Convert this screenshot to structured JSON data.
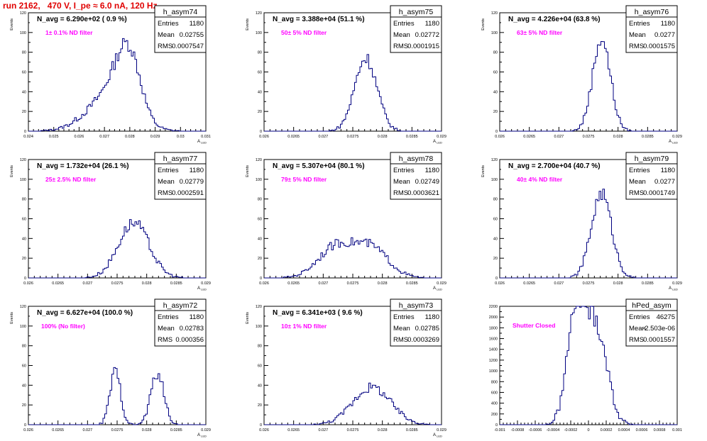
{
  "header": {
    "run_title": "run 2162,   470 V, I_pe ≈ 6.0 nA, 120 Hz"
  },
  "colors": {
    "histogram": "#000080",
    "filter_text": "#ff00ff",
    "title": "#e00000",
    "frame": "#000000"
  },
  "chart_data": [
    {
      "type": "histogram",
      "name": "h_asym74",
      "nlabel": "N_avg = 6.290e+02 ( 0.9 %)",
      "filter": "1± 0.1% ND filter",
      "stats": {
        "Entries": "1180",
        "Mean": "0.02755",
        "RMS": "0.0007547"
      },
      "ylabel": "Events",
      "xlabel": "A_LED",
      "xlim": [
        0.024,
        0.031
      ],
      "ylim": [
        0,
        120
      ],
      "xticks": [
        "0.024",
        "0.025",
        "0.026",
        "0.027",
        "0.028",
        "0.029",
        "0.03",
        "0.031"
      ],
      "yticks": [
        "0",
        "20",
        "40",
        "60",
        "80",
        "100",
        "120"
      ],
      "shape": {
        "peaks": [
          [
            0.0272,
            34,
            0.0009
          ],
          [
            0.0278,
            42,
            0.0005
          ],
          [
            0.0281,
            26,
            0.0004
          ]
        ]
      }
    },
    {
      "type": "histogram",
      "name": "h_asym75",
      "nlabel": "N_avg = 3.388e+04 (51.1 %)",
      "filter": "50± 5% ND filter",
      "stats": {
        "Entries": "1180",
        "Mean": "0.02772",
        "RMS": "0.0001915"
      },
      "ylabel": "Events",
      "xlabel": "A_LED",
      "xlim": [
        0.026,
        0.029
      ],
      "ylim": [
        0,
        120
      ],
      "xticks": [
        "0.026",
        "0.0265",
        "0.027",
        "0.0275",
        "0.028",
        "0.0285",
        "0.029"
      ],
      "yticks": [
        "0",
        "20",
        "40",
        "60",
        "80",
        "100",
        "120"
      ],
      "shape": {
        "peaks": [
          [
            0.02772,
            74,
            0.00019
          ]
        ]
      }
    },
    {
      "type": "histogram",
      "name": "h_asym76",
      "nlabel": "N_avg = 4.226e+04 (63.8 %)",
      "filter": "63± 5% ND filter",
      "stats": {
        "Entries": "1180",
        "Mean": "0.0277",
        "RMS": "0.0001575"
      },
      "ylabel": "Events",
      "xlabel": "A_LED",
      "xlim": [
        0.026,
        0.029
      ],
      "ylim": [
        0,
        120
      ],
      "xticks": [
        "0.026",
        "0.0265",
        "0.027",
        "0.0275",
        "0.028",
        "0.0285",
        "0.029"
      ],
      "yticks": [
        "0",
        "20",
        "40",
        "60",
        "80",
        "100",
        "120"
      ],
      "shape": {
        "peaks": [
          [
            0.02772,
            94,
            0.00015
          ]
        ]
      }
    },
    {
      "type": "histogram",
      "name": "h_asym77",
      "nlabel": "N_avg = 1.732e+04 (26.1 %)",
      "filter": "25± 2.5% ND filter",
      "stats": {
        "Entries": "1180",
        "Mean": "0.02779",
        "RMS": "0.0002591"
      },
      "ylabel": "Events",
      "xlabel": "A_LED",
      "xlim": [
        0.026,
        0.029
      ],
      "ylim": [
        0,
        120
      ],
      "xticks": [
        "0.026",
        "0.0265",
        "0.027",
        "0.0275",
        "0.028",
        "0.0285",
        "0.029"
      ],
      "yticks": [
        "0",
        "20",
        "40",
        "60",
        "80",
        "100",
        "120"
      ],
      "shape": {
        "peaks": [
          [
            0.02778,
            56,
            0.00026
          ]
        ]
      }
    },
    {
      "type": "histogram",
      "name": "h_asym78",
      "nlabel": "N_avg = 5.307e+04 (80.1 %)",
      "filter": "79± 5% ND filter",
      "stats": {
        "Entries": "1180",
        "Mean": "0.02749",
        "RMS": "0.0003621"
      },
      "ylabel": "Events",
      "xlabel": "A_LED",
      "xlim": [
        0.026,
        0.029
      ],
      "ylim": [
        0,
        120
      ],
      "xticks": [
        "0.026",
        "0.0265",
        "0.027",
        "0.0275",
        "0.028",
        "0.0285",
        "0.029"
      ],
      "yticks": [
        "0",
        "20",
        "40",
        "60",
        "80",
        "100",
        "120"
      ],
      "shape": {
        "peaks": [
          [
            0.0272,
            30,
            0.0003
          ],
          [
            0.0278,
            30,
            0.0003
          ]
        ]
      }
    },
    {
      "type": "histogram",
      "name": "h_asym79",
      "nlabel": "N_avg = 2.700e+04 (40.7 %)",
      "filter": "40± 4% ND filter",
      "stats": {
        "Entries": "1180",
        "Mean": "0.0277",
        "RMS": "0.0001749"
      },
      "ylabel": "Events",
      "xlabel": "A_LED",
      "xlim": [
        0.026,
        0.029
      ],
      "ylim": [
        0,
        120
      ],
      "xticks": [
        "0.026",
        "0.0265",
        "0.027",
        "0.0275",
        "0.028",
        "0.0285",
        "0.029"
      ],
      "yticks": [
        "0",
        "20",
        "40",
        "60",
        "80",
        "100",
        "120"
      ],
      "shape": {
        "peaks": [
          [
            0.02772,
            86,
            0.00017
          ]
        ]
      }
    },
    {
      "type": "histogram",
      "name": "h_asym72",
      "nlabel": "N_avg = 6.627e+04 (100.0 %)",
      "filter": "100% (No filter)",
      "stats": {
        "Entries": "1180",
        "Mean": "0.02783",
        "RMS": "0.000356"
      },
      "ylabel": "Events",
      "xlabel": "A_LED",
      "xlim": [
        0.026,
        0.029
      ],
      "ylim": [
        0,
        120
      ],
      "xticks": [
        "0.026",
        "0.0265",
        "0.027",
        "0.0275",
        "0.028",
        "0.0285",
        "0.029"
      ],
      "yticks": [
        "0",
        "20",
        "40",
        "60",
        "80",
        "100",
        "120"
      ],
      "shape": {
        "peaks": [
          [
            0.02747,
            54,
            9e-05
          ],
          [
            0.02818,
            52,
            0.00011
          ]
        ]
      }
    },
    {
      "type": "histogram",
      "name": "h_asym73",
      "nlabel": "N_avg = 6.341e+03 ( 9.6 %)",
      "filter": "10± 1% ND filter",
      "stats": {
        "Entries": "1180",
        "Mean": "0.02785",
        "RMS": "0.0003269"
      },
      "ylabel": "Events",
      "xlabel": "A_LED",
      "xlim": [
        0.026,
        0.029
      ],
      "ylim": [
        0,
        120
      ],
      "xticks": [
        "0.026",
        "0.0265",
        "0.027",
        "0.0275",
        "0.028",
        "0.0285",
        "0.029"
      ],
      "yticks": [
        "0",
        "20",
        "40",
        "60",
        "80",
        "100",
        "120"
      ],
      "shape": {
        "peaks": [
          [
            0.02782,
            38,
            0.00032
          ]
        ]
      }
    },
    {
      "type": "histogram",
      "name": "hPed_asym",
      "nlabel": "",
      "filter": "Shutter Closed",
      "stats": {
        "Entries": "46275",
        "Mean": "-2.503e-06",
        "RMS": "0.0001557"
      },
      "ylabel": "",
      "xlabel": "",
      "xlim": [
        -0.001,
        0.001
      ],
      "ylim": [
        0,
        2200
      ],
      "xticks": [
        "-0.001",
        "-0.0008",
        "-0.0006",
        "-0.0004",
        "-0.0002",
        "0",
        "0.0002",
        "0.0004",
        "0.0006",
        "0.0008",
        "0.001"
      ],
      "yticks": [
        "0",
        "200",
        "400",
        "600",
        "800",
        "1000",
        "1200",
        "1400",
        "1600",
        "1800",
        "2000",
        "2200"
      ],
      "shape": {
        "peaks": [
          [
            -0.00014,
            2050,
            0.0001
          ],
          [
            9e-05,
            1800,
            0.00012
          ]
        ]
      }
    }
  ]
}
